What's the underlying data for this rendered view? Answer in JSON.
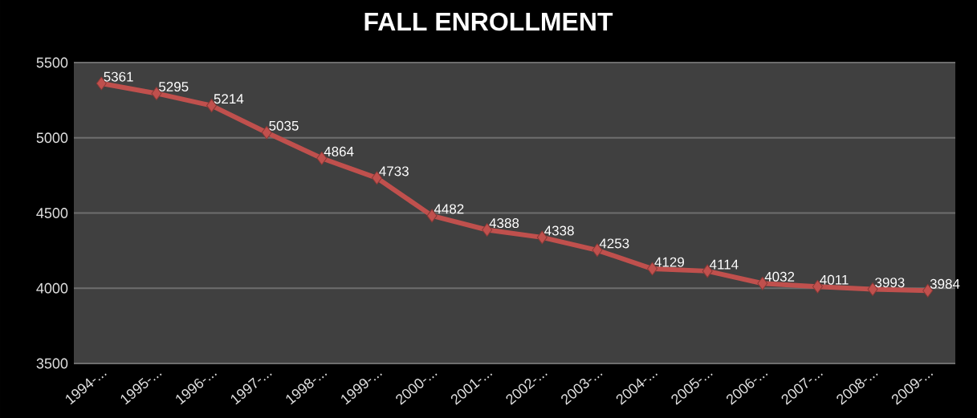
{
  "chart_data": {
    "type": "line",
    "title": "FALL ENROLLMENT",
    "categories": [
      "1994-...",
      "1995-...",
      "1996-...",
      "1997-...",
      "1998-...",
      "1999-...",
      "2000-...",
      "2001-...",
      "2002-...",
      "2003-...",
      "2004-...",
      "2005-...",
      "2006-...",
      "2007-...",
      "2008-...",
      "2009-..."
    ],
    "series": [
      {
        "color": "#c0504d",
        "values": [
          5361,
          5295,
          5214,
          5035,
          4864,
          4733,
          4482,
          4388,
          4338,
          4253,
          4129,
          4114,
          4032,
          4011,
          3993,
          3984
        ]
      }
    ],
    "ylim": [
      3500,
      5500
    ],
    "yticks": [
      3500,
      4000,
      4500,
      5000,
      5500
    ],
    "grid": "y",
    "marker": "diamond",
    "line_style": "solid",
    "data_labels": true
  }
}
